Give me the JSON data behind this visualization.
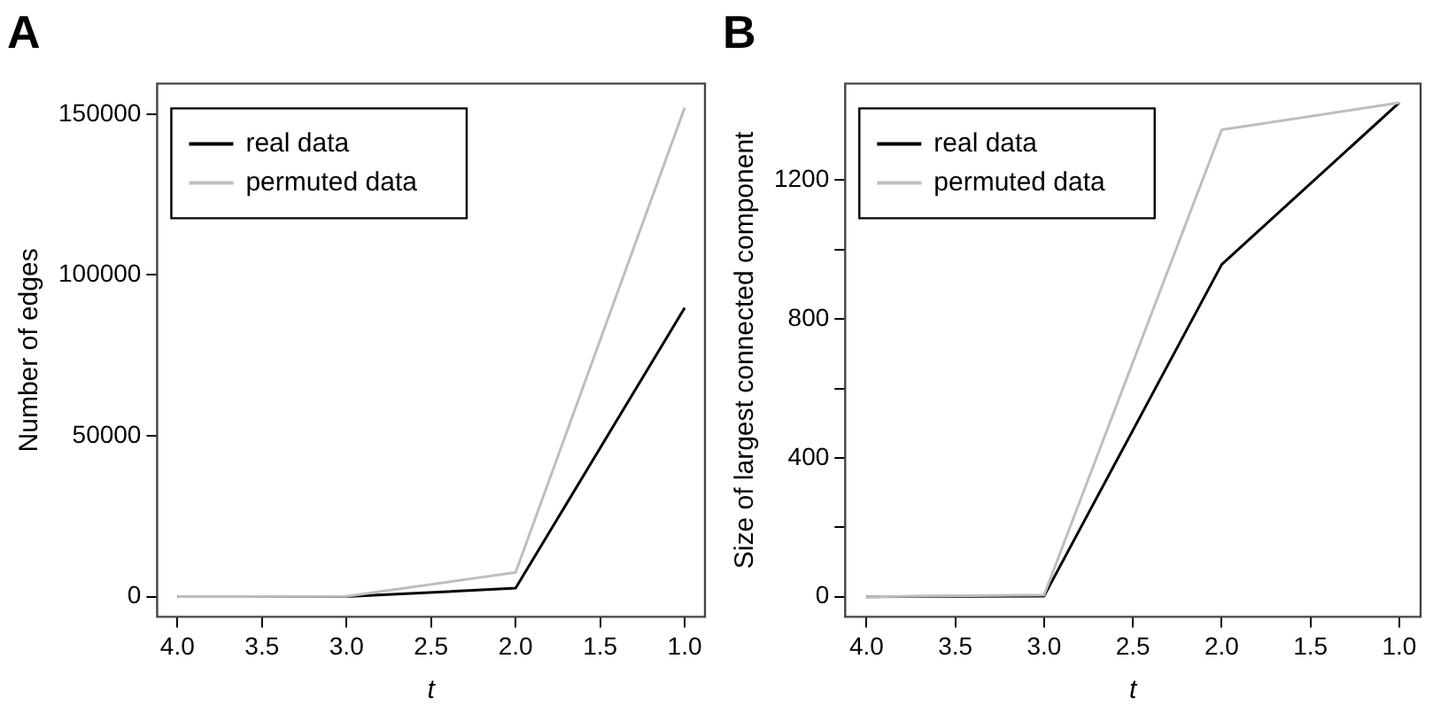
{
  "chart_data": [
    {
      "type": "line",
      "title": "A",
      "xlabel": "t",
      "ylabel": "Number of edges",
      "x": [
        4,
        3,
        2,
        1
      ],
      "series": [
        {
          "name": "real data",
          "color": "#000000",
          "values": [
            0,
            0,
            2600,
            89800
          ]
        },
        {
          "name": "permuted data",
          "color": "#bebebe",
          "values": [
            0,
            100,
            7500,
            152000
          ]
        }
      ],
      "xlim": [
        4.12,
        0.88
      ],
      "xticks": [
        {
          "value": 4,
          "label": "4.0"
        },
        3.5,
        {
          "value": 3,
          "label": "3.0"
        },
        2.5,
        {
          "value": 2,
          "label": "2.0"
        },
        1.5,
        {
          "value": 1,
          "label": "1.0"
        }
      ],
      "ylim": [
        -6300,
        159500
      ],
      "yticks": [
        0,
        50000,
        100000,
        150000
      ],
      "legend": "top left",
      "grid": false,
      "marker": "none",
      "line_style": "solid"
    },
    {
      "type": "line",
      "title": "B",
      "xlabel": "t",
      "ylabel": "Size of largest connected component",
      "x": [
        4,
        3,
        2,
        1
      ],
      "series": [
        {
          "name": "real data",
          "color": "#000000",
          "values": [
            0,
            2,
            957,
            1423
          ]
        },
        {
          "name": "permuted data",
          "color": "#bebebe",
          "values": [
            0,
            5,
            1345,
            1423
          ]
        }
      ],
      "xlim": [
        4.12,
        0.88
      ],
      "xticks": [
        {
          "value": 4,
          "label": "4.0"
        },
        3.5,
        {
          "value": 3,
          "label": "3.0"
        },
        2.5,
        {
          "value": 2,
          "label": "2.0"
        },
        1.5,
        {
          "value": 1,
          "label": "1.0"
        }
      ],
      "ylim": [
        -58,
        1478
      ],
      "yticks": [
        0,
        {
          "value": 200,
          "label": null
        },
        400,
        {
          "value": 600,
          "label": null
        },
        800,
        {
          "value": 1000,
          "label": null
        },
        1200
      ],
      "legend": "top left",
      "grid": false,
      "marker": "none",
      "line_style": "solid"
    }
  ]
}
